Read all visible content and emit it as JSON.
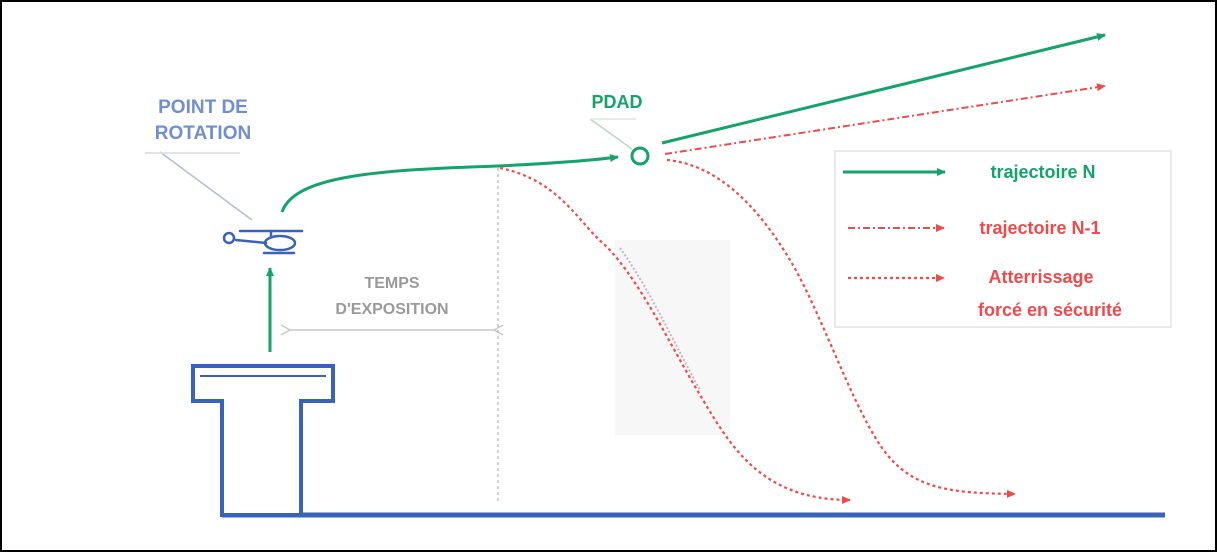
{
  "labels": {
    "rotation_line1": "POINT DE",
    "rotation_line2": "ROTATION",
    "pdad": "PDAD",
    "exposure_line1": "TEMPS",
    "exposure_line2": "D'EXPOSITION"
  },
  "legend": {
    "items": [
      {
        "label": "trajectoire N"
      },
      {
        "label": "trajectoire N-1"
      },
      {
        "label_line1": "Atterrissage",
        "label_line2": "forcé en sécurité"
      }
    ]
  },
  "colors": {
    "blue": "#3a62b8",
    "label_blue": "#6f8fd0",
    "green": "#15a36b",
    "red": "#ef4a4a",
    "grey": "#9a9a9a"
  },
  "icons": {
    "helicopter": "helicopter-icon",
    "helipad": "elevated-helipad-icon"
  }
}
